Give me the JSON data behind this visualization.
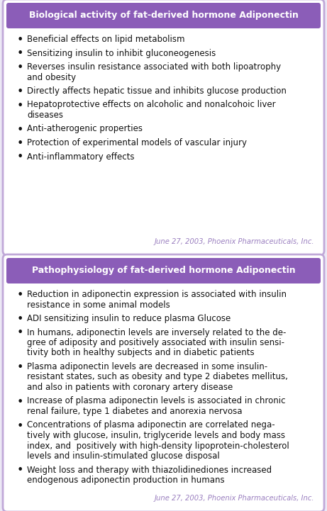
{
  "background_color": "#ece8f5",
  "box1_title": "Biological activity of fat-derived hormone Adiponectin",
  "box1_header_color": "#8b5db8",
  "box1_border_color": "#c0a8d8",
  "box1_bg": "#ffffff",
  "box1_items": [
    "Beneficial effects on lipid metabolism",
    "Sensitizing insulin to inhibit gluconeogenesis",
    "Reverses insulin resistance associated with both lipoatrophy\nand obesity",
    "Directly affects hepatic tissue and inhibits glucose production",
    "Hepatoprotective effects on alcoholic and nonalcohoic liver\ndiseases",
    "Anti-atherogenic properties",
    "Protection of experimental models of vascular injury",
    "Anti-inflammatory effects"
  ],
  "box2_title": "Pathophysiology of fat-derived hormone Adiponectin",
  "box2_header_color": "#8b5db8",
  "box2_border_color": "#c0a8d8",
  "box2_bg": "#ffffff",
  "box2_items": [
    "Reduction in adiponectin expression is associated with insulin\nresistance in some animal models",
    "ADI sensitizing insulin to reduce plasma Glucose",
    "In humans, adiponectin levels are inversely related to the de-\ngree of adiposity and positively associated with insulin sensi-\ntivity both in healthy subjects and in diabetic patients",
    "Plasma adiponectin levels are decreased in some insulin-\nresistant states, such as obesity and type 2 diabetes mellitus,\nand also in patients with coronary artery disease",
    "Increase of plasma adiponectin levels is associated in chronic\nrenal failure, type 1 diabetes and anorexia nervosa",
    "Concentrations of plasma adiponectin are correlated nega-\ntively with glucose, insulin, triglyceride levels and body mass\nindex, and  positively with high-density lipoprotein-cholesterol\nlevels and insulin-stimulated glucose disposal",
    "Weight loss and therapy with thiazolidinediones increased\nendogenous adiponectin production in humans"
  ],
  "footer_text": "June 27, 2003, Phoenix Pharmaceuticals, Inc.",
  "footer_color": "#9b80c0",
  "title_fontsize": 9.0,
  "body_fontsize": 8.5,
  "footer_fontsize": 7.2,
  "bullet_color": "#111111",
  "text_color": "#111111",
  "title_text_color": "#ffffff"
}
